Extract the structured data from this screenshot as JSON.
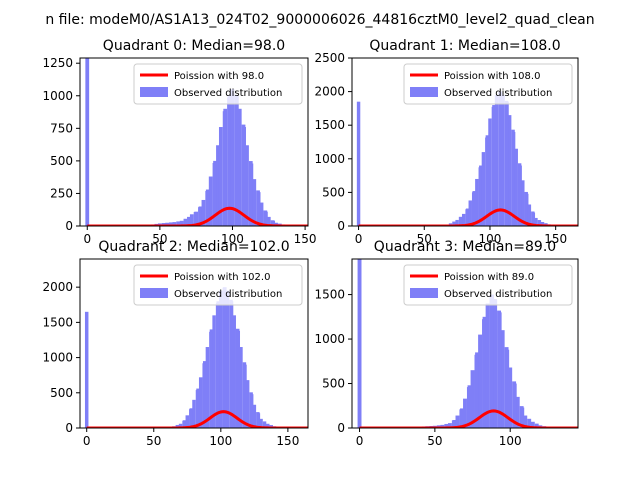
{
  "figure": {
    "suptitle": "n file: modeM0/AS1A13_024T02_9000006026_44816cztM0_level2_quad_clean"
  },
  "colors": {
    "poisson": "#ff0000",
    "observed": "#7f7ff7",
    "axes": "#000000",
    "background": "#ffffff"
  },
  "chart_data": [
    {
      "type": "bar",
      "title": "Quadrant 0: Median=98.0",
      "xlim": [
        -5,
        152
      ],
      "ylim": [
        0,
        1290
      ],
      "xticks": [
        0,
        50,
        100,
        150
      ],
      "yticks": [
        0,
        250,
        500,
        750,
        1000,
        1250
      ],
      "legend": {
        "placement": "top-right",
        "entries": [
          "Poission with 98.0",
          "Observed distribution"
        ]
      },
      "median": 98.0,
      "spike": {
        "x": 0,
        "value": 1290
      },
      "observed": [
        [
          40,
          10
        ],
        [
          45,
          12
        ],
        [
          50,
          20
        ],
        [
          55,
          25
        ],
        [
          60,
          30
        ],
        [
          65,
          40
        ],
        [
          70,
          70
        ],
        [
          72,
          90
        ],
        [
          75,
          110
        ],
        [
          78,
          150
        ],
        [
          80,
          200
        ],
        [
          83,
          280
        ],
        [
          85,
          380
        ],
        [
          88,
          500
        ],
        [
          90,
          620
        ],
        [
          92,
          760
        ],
        [
          95,
          900
        ],
        [
          98,
          1000
        ],
        [
          100,
          1050
        ],
        [
          103,
          1000
        ],
        [
          105,
          900
        ],
        [
          108,
          760
        ],
        [
          110,
          620
        ],
        [
          113,
          480
        ],
        [
          115,
          360
        ],
        [
          118,
          260
        ],
        [
          120,
          180
        ],
        [
          123,
          110
        ],
        [
          125,
          70
        ],
        [
          128,
          40
        ],
        [
          130,
          25
        ],
        [
          135,
          12
        ],
        [
          140,
          6
        ],
        [
          145,
          3
        ]
      ],
      "poisson": {
        "lambda": 98.0,
        "scale": 3380
      },
      "legend_labels": [
        "Poission with 98.0",
        "Observed distribution"
      ]
    },
    {
      "type": "bar",
      "title": "Quadrant 1: Median=108.0",
      "xlim": [
        -5,
        167
      ],
      "ylim": [
        0,
        2500
      ],
      "xticks": [
        0,
        50,
        100,
        150
      ],
      "yticks": [
        0,
        500,
        1000,
        1500,
        2000,
        2500
      ],
      "legend": {
        "placement": "top-right",
        "entries": [
          "Poission with 108.0",
          "Observed distribution"
        ]
      },
      "median": 108.0,
      "spike": {
        "x": 0,
        "value": 1850
      },
      "observed": [
        [
          70,
          40
        ],
        [
          75,
          90
        ],
        [
          80,
          180
        ],
        [
          83,
          260
        ],
        [
          85,
          380
        ],
        [
          88,
          520
        ],
        [
          90,
          700
        ],
        [
          93,
          900
        ],
        [
          95,
          1100
        ],
        [
          98,
          1350
        ],
        [
          100,
          1600
        ],
        [
          103,
          1800
        ],
        [
          105,
          1950
        ],
        [
          108,
          2000
        ],
        [
          110,
          1950
        ],
        [
          113,
          1850
        ],
        [
          115,
          1650
        ],
        [
          118,
          1400
        ],
        [
          120,
          1150
        ],
        [
          123,
          900
        ],
        [
          125,
          680
        ],
        [
          128,
          480
        ],
        [
          130,
          320
        ],
        [
          133,
          200
        ],
        [
          135,
          120
        ],
        [
          140,
          60
        ],
        [
          145,
          25
        ],
        [
          150,
          10
        ],
        [
          155,
          5
        ]
      ],
      "poisson": {
        "lambda": 108.0,
        "scale": 6230
      },
      "legend_labels": [
        "Poission with 108.0",
        "Observed distribution"
      ]
    },
    {
      "type": "bar",
      "title": "Quadrant 2: Median=102.0",
      "xlim": [
        -5,
        165
      ],
      "ylim": [
        0,
        2400
      ],
      "xticks": [
        0,
        50,
        100,
        150
      ],
      "yticks": [
        0,
        500,
        1000,
        1500,
        2000
      ],
      "legend": {
        "placement": "top-right",
        "entries": [
          "Poission with 102.0",
          "Observed distribution"
        ]
      },
      "median": 102.0,
      "spike": {
        "x": 0,
        "value": 1650
      },
      "observed": [
        [
          60,
          10
        ],
        [
          65,
          25
        ],
        [
          70,
          60
        ],
        [
          73,
          110
        ],
        [
          75,
          180
        ],
        [
          78,
          280
        ],
        [
          80,
          400
        ],
        [
          83,
          560
        ],
        [
          85,
          720
        ],
        [
          88,
          950
        ],
        [
          90,
          1150
        ],
        [
          93,
          1400
        ],
        [
          95,
          1600
        ],
        [
          98,
          1800
        ],
        [
          100,
          1950
        ],
        [
          103,
          2000
        ],
        [
          105,
          1950
        ],
        [
          108,
          1800
        ],
        [
          110,
          1600
        ],
        [
          113,
          1380
        ],
        [
          115,
          1150
        ],
        [
          118,
          900
        ],
        [
          120,
          680
        ],
        [
          123,
          480
        ],
        [
          125,
          330
        ],
        [
          128,
          210
        ],
        [
          130,
          130
        ],
        [
          135,
          60
        ],
        [
          140,
          25
        ],
        [
          145,
          10
        ],
        [
          150,
          5
        ]
      ],
      "poisson": {
        "lambda": 102.0,
        "scale": 5870
      },
      "legend_labels": [
        "Poission with 102.0",
        "Observed distribution"
      ]
    },
    {
      "type": "bar",
      "title": "Quadrant 3: Median=89.0",
      "xlim": [
        -5,
        145
      ],
      "ylim": [
        0,
        1900
      ],
      "xticks": [
        0,
        50,
        100
      ],
      "yticks": [
        0,
        500,
        1000,
        1500
      ],
      "legend": {
        "placement": "top-right",
        "entries": [
          "Poission with 89.0",
          "Observed distribution"
        ]
      },
      "median": 89.0,
      "spike": {
        "x": 0,
        "value": 1900
      },
      "observed": [
        [
          40,
          15
        ],
        [
          45,
          20
        ],
        [
          50,
          25
        ],
        [
          55,
          35
        ],
        [
          60,
          55
        ],
        [
          63,
          90
        ],
        [
          65,
          140
        ],
        [
          68,
          220
        ],
        [
          70,
          330
        ],
        [
          73,
          480
        ],
        [
          75,
          650
        ],
        [
          78,
          850
        ],
        [
          80,
          1050
        ],
        [
          83,
          1250
        ],
        [
          85,
          1400
        ],
        [
          88,
          1500
        ],
        [
          90,
          1450
        ],
        [
          93,
          1300
        ],
        [
          95,
          1100
        ],
        [
          98,
          880
        ],
        [
          100,
          680
        ],
        [
          103,
          500
        ],
        [
          105,
          350
        ],
        [
          108,
          230
        ],
        [
          110,
          140
        ],
        [
          115,
          70
        ],
        [
          120,
          30
        ],
        [
          125,
          12
        ],
        [
          130,
          5
        ]
      ],
      "poisson": {
        "lambda": 89.0,
        "scale": 4540
      },
      "legend_labels": [
        "Poission with 89.0",
        "Observed distribution"
      ]
    }
  ]
}
